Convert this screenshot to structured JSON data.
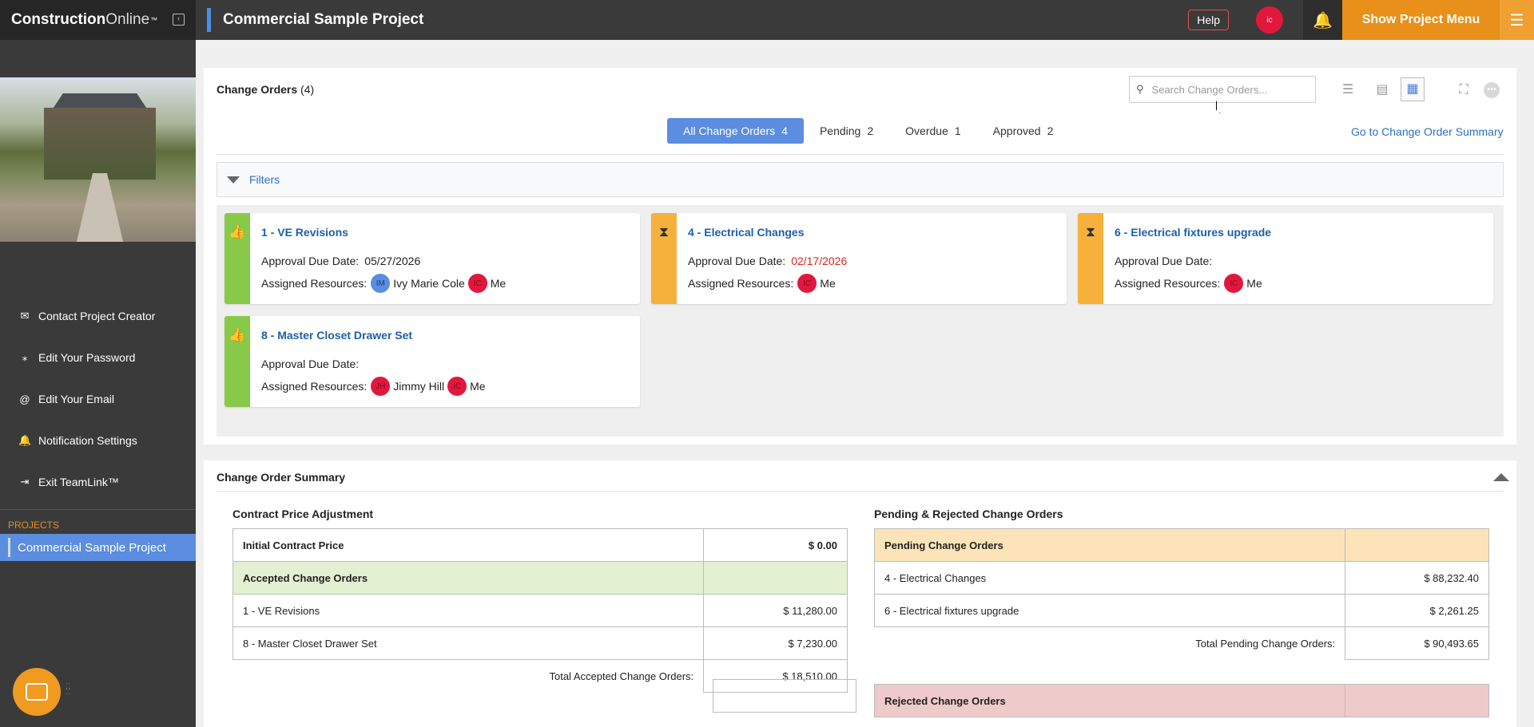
{
  "brand": {
    "name_bold": "Construction",
    "name_light": "Online",
    "trademark": "™"
  },
  "header": {
    "project_title": "Commercial Sample Project",
    "help_label": "Help",
    "avatar_initials": "ic",
    "show_menu_label": "Show Project Menu"
  },
  "sidebar": {
    "items": [
      {
        "label": "Contact Project Creator",
        "icon": "envelope-icon",
        "glyph": "✉"
      },
      {
        "label": "Edit Your Password",
        "icon": "password-icon",
        "glyph": "⁎"
      },
      {
        "label": "Edit Your Email",
        "icon": "at-icon",
        "glyph": "@"
      },
      {
        "label": "Notification Settings",
        "icon": "bell-icon",
        "glyph": "🔔"
      },
      {
        "label": "Exit TeamLink™",
        "icon": "exit-icon",
        "glyph": "⇥"
      }
    ],
    "projects_label": "PROJECTS",
    "active_project": "Commercial Sample Project"
  },
  "change_orders": {
    "title": "Change Orders",
    "count": "(4)",
    "search_placeholder": "Search Change Orders...",
    "tabs": [
      {
        "label": "All Change Orders",
        "count": "4"
      },
      {
        "label": "Pending",
        "count": "2"
      },
      {
        "label": "Overdue",
        "count": "1"
      },
      {
        "label": "Approved",
        "count": "2"
      }
    ],
    "summary_link": "Go to Change Order Summary",
    "filters_label": "Filters",
    "approval_label": "Approval Due Date:",
    "resources_label": "Assigned Resources:",
    "cards": [
      {
        "title": "1 - VE Revisions",
        "status": "approved",
        "due": "05/27/2026",
        "resources": [
          {
            "initials": "IM",
            "name": "Ivy Marie Cole"
          },
          {
            "initials": "IC",
            "name": "Me"
          }
        ]
      },
      {
        "title": "4 - Electrical Changes",
        "status": "pending",
        "due": "02/17/2026",
        "resources": [
          {
            "initials": "IC",
            "name": "Me"
          }
        ]
      },
      {
        "title": "6 - Electrical fixtures upgrade",
        "status": "pending",
        "due": "",
        "resources": [
          {
            "initials": "IC",
            "name": "Me"
          }
        ]
      },
      {
        "title": "8 - Master Closet Drawer Set",
        "status": "approved",
        "due": "",
        "resources": [
          {
            "initials": "JH",
            "name": "Jimmy Hill"
          },
          {
            "initials": "IC",
            "name": "Me"
          }
        ]
      }
    ]
  },
  "summary": {
    "title": "Change Order Summary",
    "contract": {
      "title": "Contract Price Adjustment",
      "initial_label": "Initial Contract Price",
      "initial_value": "$ 0.00",
      "accepted_header": "Accepted Change Orders",
      "rows": [
        {
          "label": "1 - VE Revisions",
          "value": "$ 11,280.00"
        },
        {
          "label": "8 - Master Closet Drawer Set",
          "value": "$ 7,230.00"
        }
      ],
      "total_label": "Total Accepted Change Orders:",
      "total_value": "$ 18,510.00"
    },
    "pending": {
      "title": "Pending & Rejected Change Orders",
      "pending_header": "Pending Change Orders",
      "rows": [
        {
          "label": "4 - Electrical Changes",
          "value": "$ 88,232.40"
        },
        {
          "label": "6 - Electrical fixtures upgrade",
          "value": "$ 2,261.25"
        }
      ],
      "total_label": "Total Pending Change Orders:",
      "total_value": "$ 90,493.65",
      "rejected_header": "Rejected Change Orders"
    }
  },
  "colors": {
    "accent": "#5b8de0",
    "orange": "#e8901a",
    "approved": "#88c94a",
    "pending": "#f6b13c",
    "avatar_red": "#e2173e"
  }
}
